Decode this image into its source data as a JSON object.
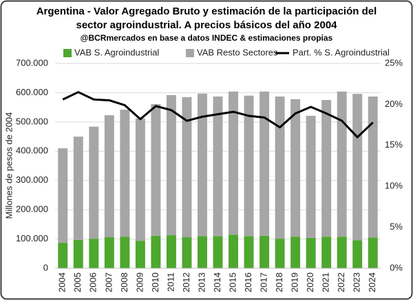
{
  "chart_data": {
    "type": "bar",
    "stacked": true,
    "title": [
      "Argentina - Valor Agregado Bruto y estimación de la participación del",
      "sector agroindustrial. A precios básicos del año 2004"
    ],
    "subtitle": "@BCRmercados en base a datos INDEC & estimaciones propias",
    "y_label": "Millones de pesos de 2004",
    "categories": [
      "2004",
      "2005",
      "2006",
      "2007",
      "2008",
      "2009",
      "2010",
      "2011",
      "2012",
      "2013",
      "2014",
      "2015",
      "2016",
      "2017",
      "2018",
      "2019",
      "2020",
      "2021",
      "2022",
      "2023",
      "2024"
    ],
    "series": [
      {
        "name": "VAB S. Agroindustrial",
        "color": "#4ea72e",
        "kind": "bar",
        "values": [
          87000,
          97000,
          101000,
          106000,
          108000,
          94000,
          111000,
          113000,
          106000,
          110000,
          110000,
          115000,
          110000,
          111000,
          101000,
          108000,
          104000,
          108000,
          108000,
          96000,
          105000
        ]
      },
      {
        "name": "VAB Resto Sectores",
        "color": "#a6a6a6",
        "kind": "bar",
        "values": [
          323000,
          353000,
          383000,
          417000,
          434000,
          418000,
          450000,
          479000,
          479000,
          487000,
          477000,
          489000,
          480000,
          493000,
          486000,
          470000,
          417000,
          467000,
          496000,
          500000,
          482000
        ]
      },
      {
        "name": "Part. % S. Agroindustrial",
        "color": "#000000",
        "kind": "line",
        "axis": "y2",
        "values": [
          20.6,
          21.5,
          20.6,
          20.5,
          19.9,
          18.2,
          19.8,
          19.3,
          18.0,
          18.5,
          18.8,
          19.1,
          18.6,
          18.4,
          17.2,
          18.9,
          19.7,
          18.9,
          18.0,
          16.0,
          17.8
        ]
      }
    ],
    "ylim": [
      0,
      700000
    ],
    "yticks": [
      0,
      {
        "value": 100000,
        "label": "100.000"
      },
      {
        "value": 200000,
        "label": "200.000"
      },
      {
        "value": 300000,
        "label": "300.000"
      },
      {
        "value": 400000,
        "label": "400.000"
      },
      {
        "value": 500000,
        "label": "500.000"
      },
      {
        "value": 600000,
        "label": "600.000"
      },
      {
        "value": 700000,
        "label": "700.000"
      }
    ],
    "y2lim": [
      0,
      25
    ],
    "y2ticks": [
      {
        "value": 0,
        "label": "0%"
      },
      {
        "value": 5,
        "label": "5%"
      },
      {
        "value": 10,
        "label": "10%"
      },
      {
        "value": 15,
        "label": "15%"
      },
      {
        "value": 20,
        "label": "20%"
      },
      {
        "value": 25,
        "label": "25%"
      }
    ],
    "grid": true,
    "legend": "top"
  }
}
